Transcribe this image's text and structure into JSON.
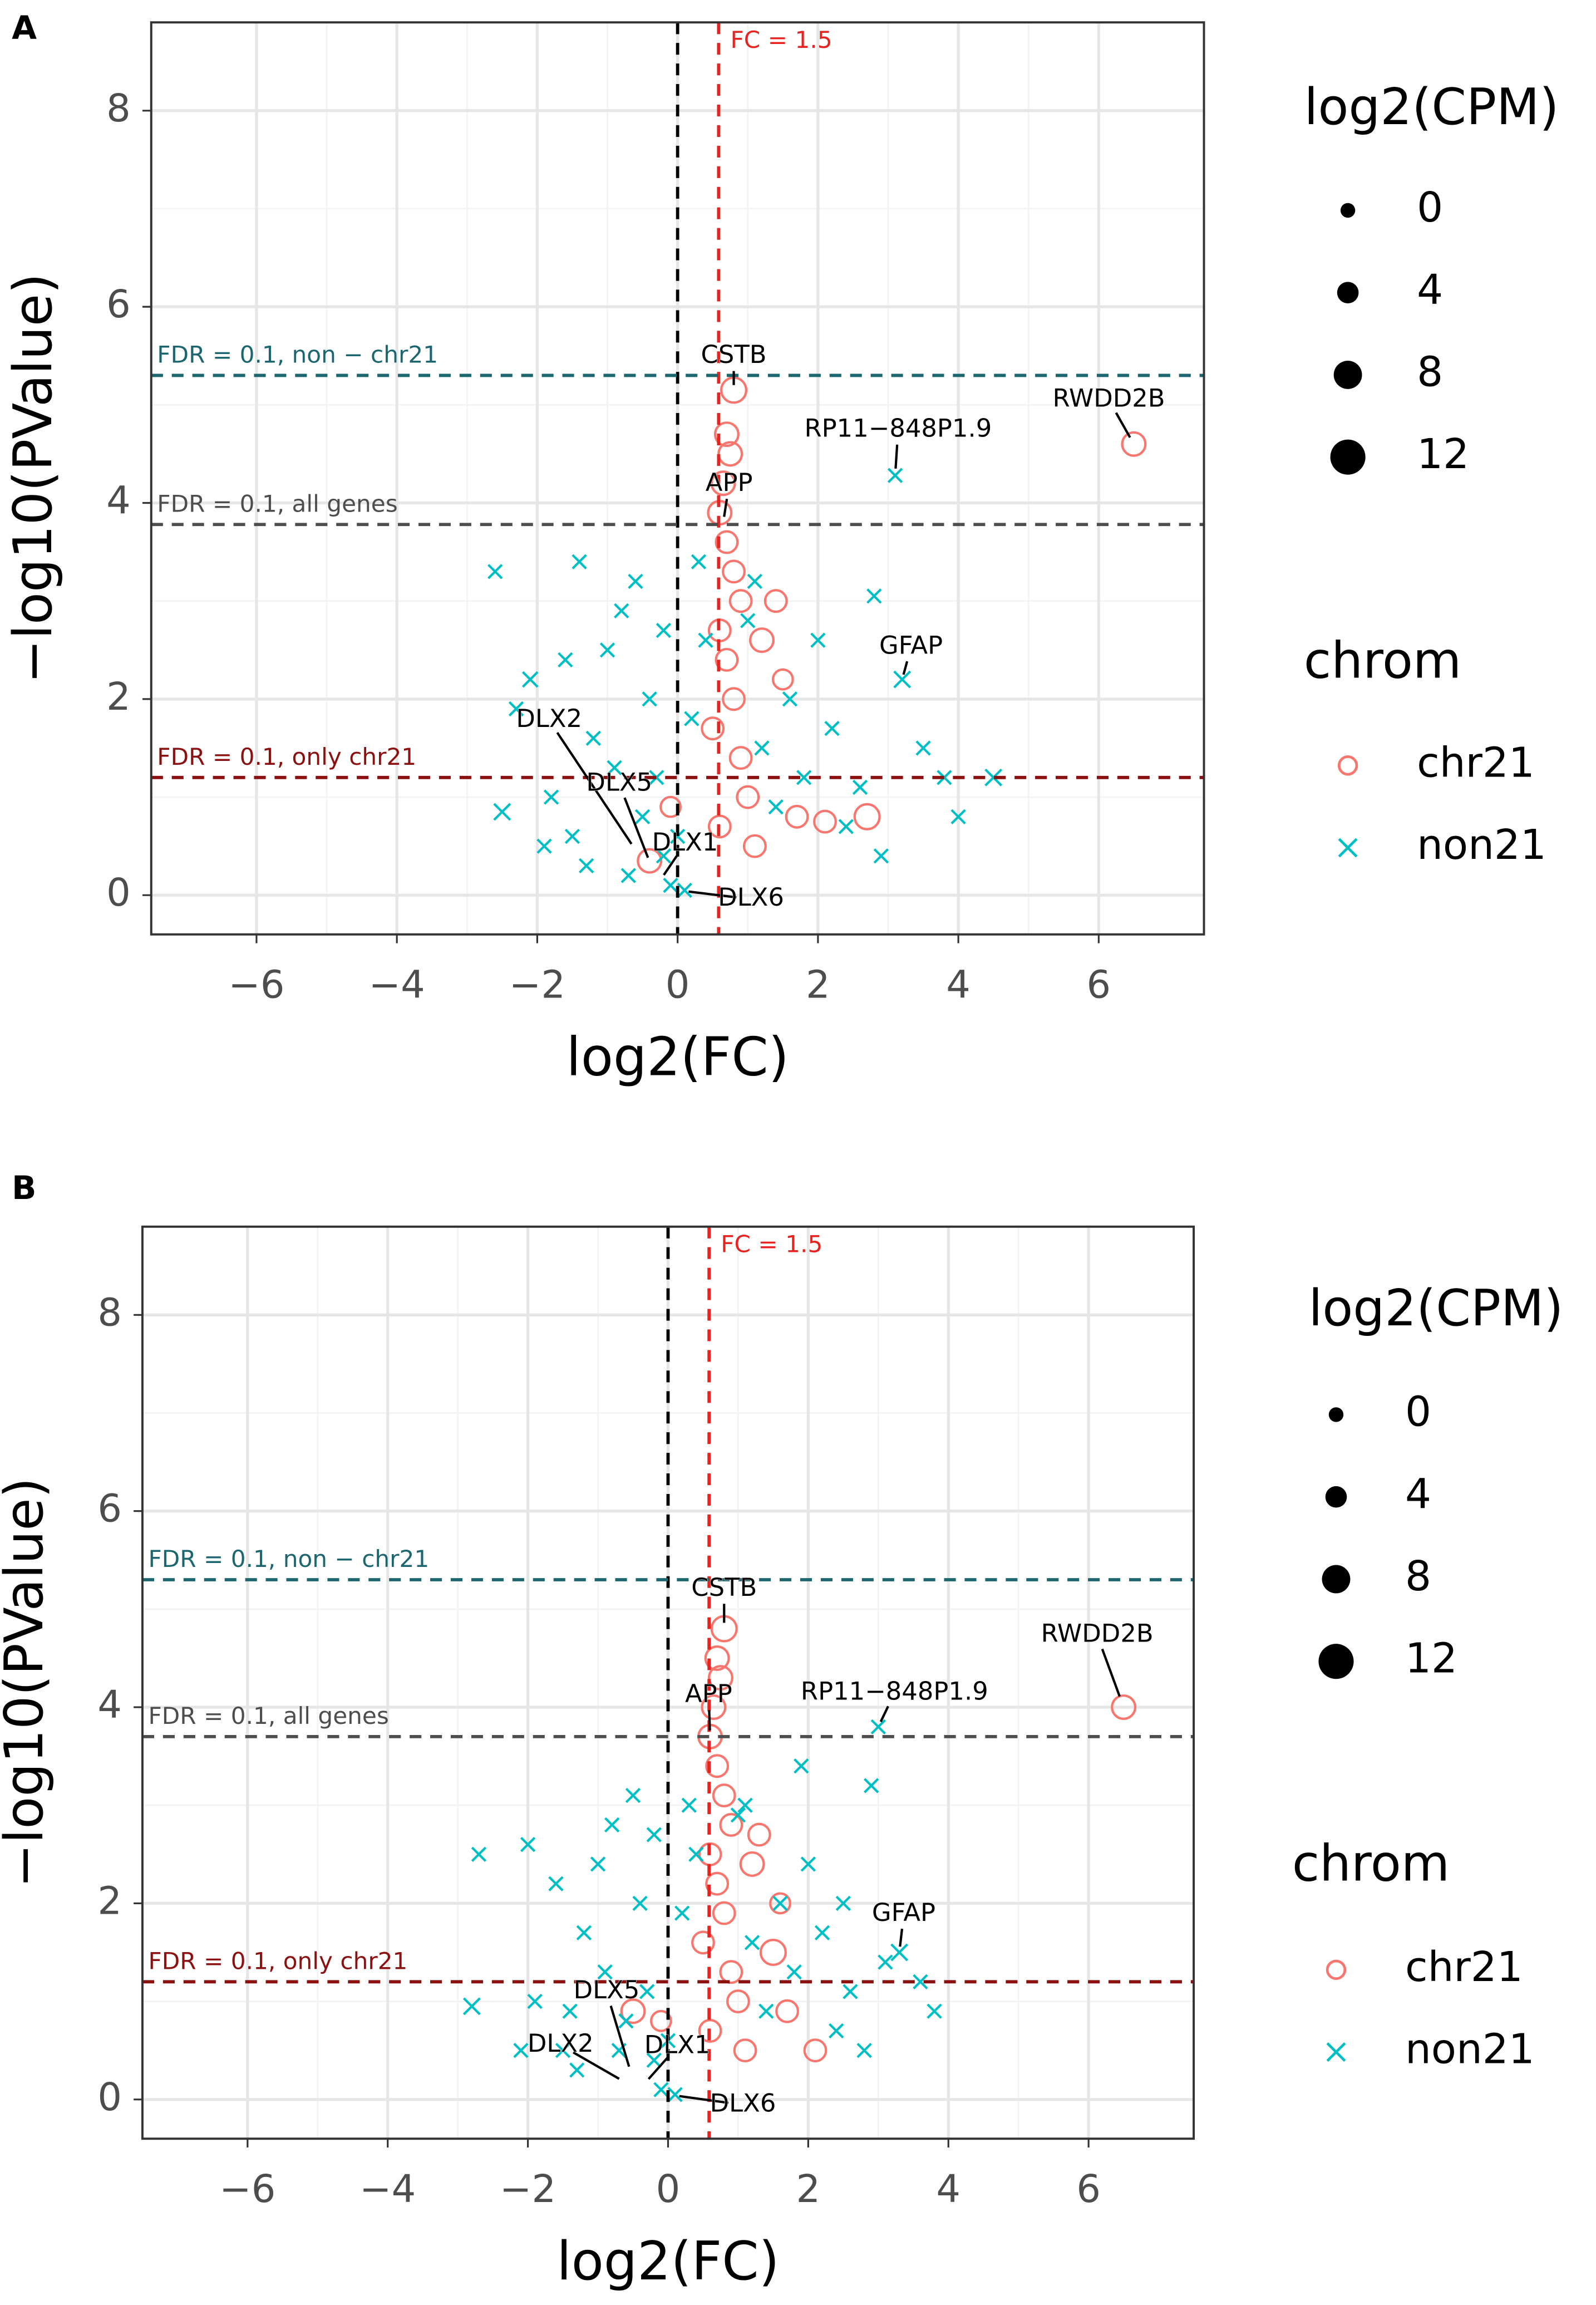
{
  "chart_data": [
    {
      "type": "scatter",
      "panel": "A",
      "xlabel": "log2(FC)",
      "ylabel": "−log10(PValue)",
      "xlim": [
        -7.5,
        7.5
      ],
      "ylim": [
        -0.4,
        8.9
      ],
      "xticks": [
        {
          "value": -6,
          "label": "−6"
        },
        {
          "value": -4,
          "label": "−4"
        },
        {
          "value": -2,
          "label": "−2"
        },
        0,
        2,
        4,
        6
      ],
      "yticks": [
        0,
        2,
        4,
        6,
        8
      ],
      "grid": true,
      "vlines": [
        {
          "x": 0,
          "color": "#000000"
        },
        {
          "x": 0.585,
          "color": "#e8221e",
          "label": "FC = 1.5"
        }
      ],
      "hlines": [
        {
          "y": 5.3,
          "color": "#1c6670",
          "label": "FDR = 0.1, non − chr21"
        },
        {
          "y": 3.78,
          "color": "#4d4d4d",
          "label": "FDR = 0.1, all genes"
        },
        {
          "y": 1.2,
          "color": "#8b1010",
          "label": "FDR = 0.1, only chr21"
        }
      ],
      "series": [
        {
          "name": "chr21",
          "color": "#F8766D",
          "marker": "circle",
          "x": [
            0.8,
            0.7,
            0.75,
            0.65,
            0.6,
            0.7,
            0.8,
            0.9,
            0.6,
            0.7,
            0.8,
            0.5,
            0.9,
            1.0,
            0.6,
            1.2,
            1.4,
            1.5,
            1.7,
            2.1,
            2.7,
            1.1,
            -0.4,
            -0.1,
            6.5
          ],
          "values": [
            5.15,
            4.7,
            4.5,
            4.2,
            3.9,
            3.6,
            3.3,
            3.0,
            2.7,
            2.4,
            2.0,
            1.7,
            1.4,
            1.0,
            0.7,
            2.6,
            3.0,
            2.2,
            0.8,
            0.75,
            0.8,
            0.5,
            0.35,
            0.9,
            4.6
          ],
          "sizes": [
            6,
            5,
            5,
            5,
            5,
            4,
            4,
            4,
            4,
            4,
            4,
            4,
            4,
            4,
            4,
            5,
            4,
            3,
            4,
            4,
            6,
            4,
            5,
            3,
            5
          ]
        },
        {
          "name": "non21",
          "color": "#00BFC4",
          "marker": "x",
          "x": [
            -2.5,
            -2.1,
            -2.3,
            -1.8,
            -1.5,
            -1.2,
            -1.0,
            -0.8,
            -0.6,
            -0.4,
            -0.3,
            -0.2,
            -0.1,
            0.1,
            0.2,
            -0.5,
            -0.9,
            -1.3,
            -0.7,
            -1.6,
            -1.9,
            0.3,
            0.4,
            1.0,
            1.2,
            1.4,
            1.6,
            1.8,
            2.0,
            2.2,
            2.4,
            2.6,
            2.8,
            3.1,
            3.2,
            3.5,
            3.8,
            4.0,
            4.5,
            -2.6,
            -1.4,
            1.1,
            2.9,
            0.0,
            -0.2
          ],
          "values": [
            0.85,
            2.2,
            1.9,
            1.0,
            0.6,
            1.6,
            2.5,
            2.9,
            3.2,
            2.0,
            1.2,
            0.4,
            0.1,
            0.05,
            1.8,
            0.8,
            1.3,
            0.3,
            0.2,
            2.4,
            0.5,
            3.4,
            2.6,
            2.8,
            1.5,
            0.9,
            2.0,
            1.2,
            2.6,
            1.7,
            0.7,
            1.1,
            3.05,
            4.28,
            2.2,
            1.5,
            1.2,
            0.8,
            1.2,
            3.3,
            3.4,
            3.2,
            0.4,
            0.6,
            2.7
          ],
          "sizes": [
            4,
            3,
            2,
            2,
            2,
            2,
            2,
            2,
            2,
            2,
            2,
            2,
            2,
            2,
            2,
            2,
            2,
            2,
            2,
            2,
            2,
            2,
            2,
            2,
            2,
            2,
            2,
            2,
            2,
            2,
            2,
            2,
            2,
            2,
            4,
            2,
            2,
            2,
            4,
            2,
            2,
            2,
            2,
            2,
            2
          ]
        }
      ],
      "annotations": [
        {
          "label": "CSTB",
          "x": 0.8,
          "y": 5.15
        },
        {
          "label": "RP11−848P1.9",
          "x": 3.1,
          "y": 4.28
        },
        {
          "label": "RWDD2B",
          "x": 6.5,
          "y": 4.6
        },
        {
          "label": "APP",
          "x": 0.65,
          "y": 3.8
        },
        {
          "label": "GFAP",
          "x": 3.2,
          "y": 2.2
        },
        {
          "label": "DLX2",
          "x": -0.45,
          "y": 0.3
        },
        {
          "label": "DLX5",
          "x": -0.35,
          "y": 0.25
        },
        {
          "label": "DLX1",
          "x": -0.25,
          "y": 0.15
        },
        {
          "label": "DLX6",
          "x": 0,
          "y": 0.05
        }
      ],
      "size_legend": {
        "title": "log2(CPM)",
        "values": [
          0,
          4,
          8,
          12
        ]
      },
      "color_legend_title": "chrom"
    },
    {
      "type": "scatter",
      "panel": "B",
      "xlabel": "log2(FC)",
      "ylabel": "−log10(PValue)",
      "xlim": [
        -7.5,
        7.5
      ],
      "ylim": [
        -0.4,
        8.9
      ],
      "xticks": [
        {
          "value": -6,
          "label": "−6"
        },
        {
          "value": -4,
          "label": "−4"
        },
        {
          "value": -2,
          "label": "−2"
        },
        0,
        2,
        4,
        6
      ],
      "yticks": [
        0,
        2,
        4,
        6,
        8
      ],
      "grid": true,
      "vlines": [
        {
          "x": 0,
          "color": "#000000"
        },
        {
          "x": 0.585,
          "color": "#e8221e",
          "label": "FC = 1.5"
        }
      ],
      "hlines": [
        {
          "y": 5.3,
          "color": "#1c6670",
          "label": "FDR = 0.1, non − chr21"
        },
        {
          "y": 3.7,
          "color": "#4d4d4d",
          "label": "FDR = 0.1, all genes"
        },
        {
          "y": 1.2,
          "color": "#8b1010",
          "label": "FDR = 0.1, only chr21"
        }
      ],
      "series": [
        {
          "name": "chr21",
          "color": "#F8766D",
          "marker": "circle",
          "x": [
            0.8,
            0.7,
            0.75,
            0.65,
            0.6,
            0.7,
            0.8,
            0.9,
            0.6,
            0.7,
            0.8,
            0.5,
            0.9,
            1.0,
            0.6,
            1.2,
            1.3,
            1.6,
            1.7,
            2.1,
            1.5,
            1.1,
            -0.5,
            -0.1,
            6.5
          ],
          "values": [
            4.8,
            4.5,
            4.3,
            4.0,
            3.7,
            3.4,
            3.1,
            2.8,
            2.5,
            2.2,
            1.9,
            1.6,
            1.3,
            1.0,
            0.7,
            2.4,
            2.7,
            2.0,
            0.9,
            0.5,
            1.5,
            0.5,
            0.9,
            0.8,
            4.0
          ],
          "sizes": [
            6,
            5,
            5,
            5,
            5,
            4,
            4,
            4,
            4,
            4,
            4,
            4,
            4,
            4,
            4,
            5,
            4,
            3,
            4,
            4,
            6,
            4,
            5,
            3,
            5
          ]
        },
        {
          "name": "non21",
          "color": "#00BFC4",
          "marker": "x",
          "x": [
            -2.8,
            -2.7,
            -2.0,
            -1.9,
            -1.5,
            -1.2,
            -1.0,
            -0.8,
            -0.5,
            -0.4,
            -0.3,
            -0.2,
            -0.1,
            0.1,
            0.2,
            -0.6,
            -0.9,
            -1.3,
            -0.7,
            -1.6,
            -2.1,
            0.3,
            0.4,
            1.0,
            1.2,
            1.4,
            1.6,
            1.8,
            2.0,
            2.2,
            2.4,
            2.6,
            2.9,
            3.0,
            3.3,
            3.6,
            3.8,
            2.5,
            1.9,
            -1.4,
            1.1,
            2.8,
            0.0,
            -0.2,
            3.1
          ],
          "values": [
            0.95,
            2.5,
            2.6,
            1.0,
            0.5,
            1.7,
            2.4,
            2.8,
            3.1,
            2.0,
            1.1,
            0.4,
            0.1,
            0.05,
            1.9,
            0.8,
            1.3,
            0.3,
            0.5,
            2.2,
            0.5,
            3.0,
            2.5,
            2.9,
            1.6,
            0.9,
            2.0,
            1.3,
            2.4,
            1.7,
            0.7,
            1.1,
            3.2,
            3.8,
            1.5,
            1.2,
            0.9,
            2.0,
            3.4,
            0.9,
            3.0,
            0.5,
            0.6,
            2.7,
            1.4
          ],
          "sizes": [
            4,
            2,
            2,
            2,
            2,
            2,
            2,
            2,
            2,
            2,
            2,
            2,
            2,
            2,
            2,
            2,
            2,
            2,
            2,
            2,
            2,
            2,
            2,
            2,
            2,
            2,
            2,
            2,
            2,
            2,
            2,
            2,
            2,
            2,
            4,
            2,
            2,
            2,
            2,
            2,
            2,
            2,
            2,
            2,
            2
          ]
        }
      ],
      "annotations": [
        {
          "label": "CSTB",
          "x": 0.8,
          "y": 4.8
        },
        {
          "label": "RWDD2B",
          "x": 6.5,
          "y": 4.0
        },
        {
          "label": "RP11−848P1.9",
          "x": 3.0,
          "y": 3.8
        },
        {
          "label": "APP",
          "x": 0.6,
          "y": 3.7
        },
        {
          "label": "GFAP",
          "x": 3.3,
          "y": 1.5
        },
        {
          "label": "DLX5",
          "x": -0.5,
          "y": 0.2
        },
        {
          "label": "DLX2",
          "x": -0.55,
          "y": 0.15
        },
        {
          "label": "DLX1",
          "x": -0.35,
          "y": 0.15
        },
        {
          "label": "DLX6",
          "x": 0,
          "y": 0.05
        }
      ],
      "size_legend": {
        "title": "log2(CPM)",
        "values": [
          0,
          4,
          8,
          12
        ]
      },
      "color_legend_title": "chrom"
    }
  ]
}
